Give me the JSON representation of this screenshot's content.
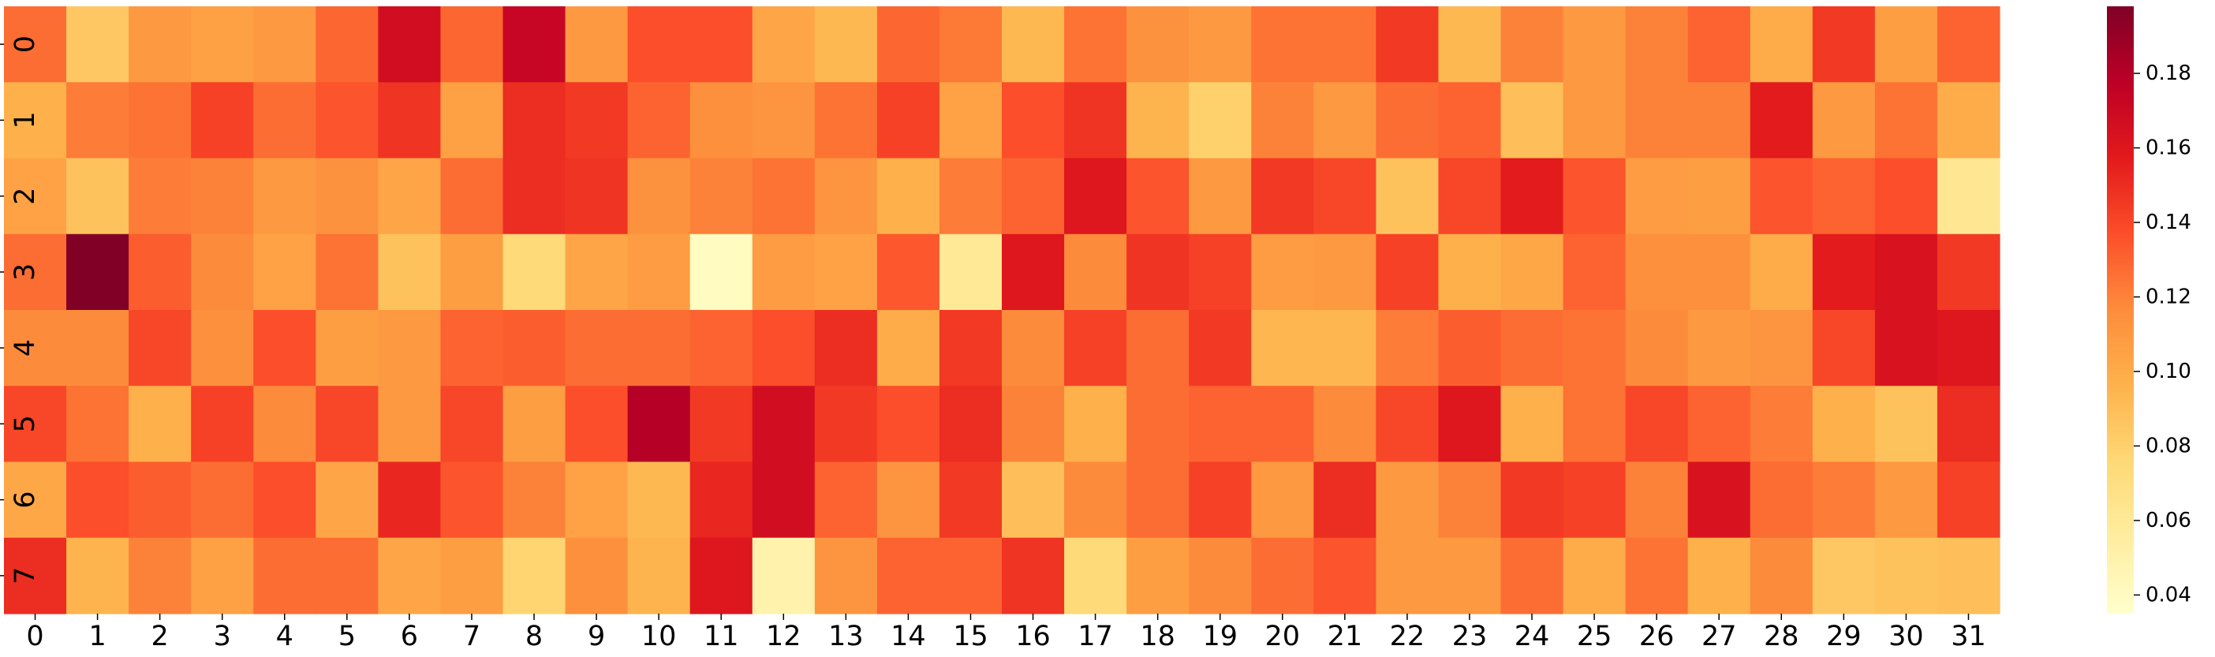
{
  "chart_data": {
    "type": "heatmap",
    "title": "",
    "xlabel": "",
    "ylabel": "",
    "colormap": "YlOrRd",
    "x_categories": [
      "0",
      "1",
      "2",
      "3",
      "4",
      "5",
      "6",
      "7",
      "8",
      "9",
      "10",
      "11",
      "12",
      "13",
      "14",
      "15",
      "16",
      "17",
      "18",
      "19",
      "20",
      "21",
      "22",
      "23",
      "24",
      "25",
      "26",
      "27",
      "28",
      "29",
      "30",
      "31"
    ],
    "y_categories": [
      "0",
      "1",
      "2",
      "3",
      "4",
      "5",
      "6",
      "7"
    ],
    "vmin": 0.035,
    "vmax": 0.198,
    "colorbar_ticks": [
      "0.04",
      "0.06",
      "0.08",
      "0.10",
      "0.12",
      "0.14",
      "0.16",
      "0.18"
    ],
    "colorbar_tick_values": [
      0.04,
      0.06,
      0.08,
      0.1,
      0.12,
      0.14,
      0.16,
      0.18
    ],
    "values": [
      [
        0.127,
        0.085,
        0.11,
        0.106,
        0.11,
        0.129,
        0.167,
        0.129,
        0.173,
        0.11,
        0.137,
        0.137,
        0.103,
        0.093,
        0.129,
        0.123,
        0.093,
        0.125,
        0.114,
        0.11,
        0.125,
        0.125,
        0.145,
        0.093,
        0.12,
        0.11,
        0.12,
        0.13,
        0.1,
        0.145,
        0.107,
        0.13
      ],
      [
        0.097,
        0.122,
        0.125,
        0.142,
        0.127,
        0.135,
        0.147,
        0.106,
        0.15,
        0.145,
        0.13,
        0.115,
        0.112,
        0.125,
        0.142,
        0.105,
        0.137,
        0.147,
        0.095,
        0.08,
        0.12,
        0.11,
        0.127,
        0.13,
        0.09,
        0.11,
        0.12,
        0.12,
        0.157,
        0.11,
        0.125,
        0.1
      ],
      [
        0.105,
        0.088,
        0.122,
        0.12,
        0.11,
        0.114,
        0.103,
        0.127,
        0.15,
        0.147,
        0.114,
        0.12,
        0.125,
        0.112,
        0.097,
        0.122,
        0.13,
        0.16,
        0.135,
        0.11,
        0.145,
        0.14,
        0.088,
        0.14,
        0.157,
        0.135,
        0.108,
        0.107,
        0.135,
        0.13,
        0.137,
        0.062
      ],
      [
        0.127,
        0.198,
        0.132,
        0.117,
        0.105,
        0.125,
        0.088,
        0.107,
        0.075,
        0.103,
        0.108,
        0.04,
        0.108,
        0.105,
        0.134,
        0.06,
        0.16,
        0.117,
        0.147,
        0.142,
        0.108,
        0.11,
        0.142,
        0.097,
        0.102,
        0.13,
        0.115,
        0.115,
        0.1,
        0.157,
        0.163,
        0.145
      ],
      [
        0.117,
        0.117,
        0.14,
        0.115,
        0.137,
        0.107,
        0.11,
        0.13,
        0.132,
        0.127,
        0.127,
        0.13,
        0.137,
        0.15,
        0.1,
        0.145,
        0.117,
        0.142,
        0.127,
        0.145,
        0.094,
        0.094,
        0.122,
        0.132,
        0.127,
        0.125,
        0.117,
        0.11,
        0.112,
        0.14,
        0.163,
        0.16
      ],
      [
        0.14,
        0.125,
        0.097,
        0.142,
        0.117,
        0.14,
        0.11,
        0.14,
        0.107,
        0.137,
        0.18,
        0.145,
        0.167,
        0.145,
        0.137,
        0.15,
        0.12,
        0.097,
        0.127,
        0.13,
        0.13,
        0.117,
        0.14,
        0.16,
        0.097,
        0.125,
        0.14,
        0.13,
        0.122,
        0.097,
        0.088,
        0.15
      ],
      [
        0.102,
        0.137,
        0.132,
        0.127,
        0.137,
        0.103,
        0.152,
        0.135,
        0.12,
        0.105,
        0.093,
        0.152,
        0.167,
        0.13,
        0.112,
        0.145,
        0.09,
        0.117,
        0.127,
        0.142,
        0.11,
        0.15,
        0.11,
        0.12,
        0.145,
        0.142,
        0.12,
        0.163,
        0.127,
        0.122,
        0.11,
        0.142
      ],
      [
        0.15,
        0.095,
        0.12,
        0.106,
        0.127,
        0.127,
        0.103,
        0.107,
        0.078,
        0.115,
        0.095,
        0.16,
        0.05,
        0.112,
        0.13,
        0.13,
        0.147,
        0.075,
        0.107,
        0.117,
        0.127,
        0.135,
        0.11,
        0.11,
        0.127,
        0.1,
        0.125,
        0.097,
        0.117,
        0.085,
        0.088,
        0.09
      ]
    ]
  }
}
